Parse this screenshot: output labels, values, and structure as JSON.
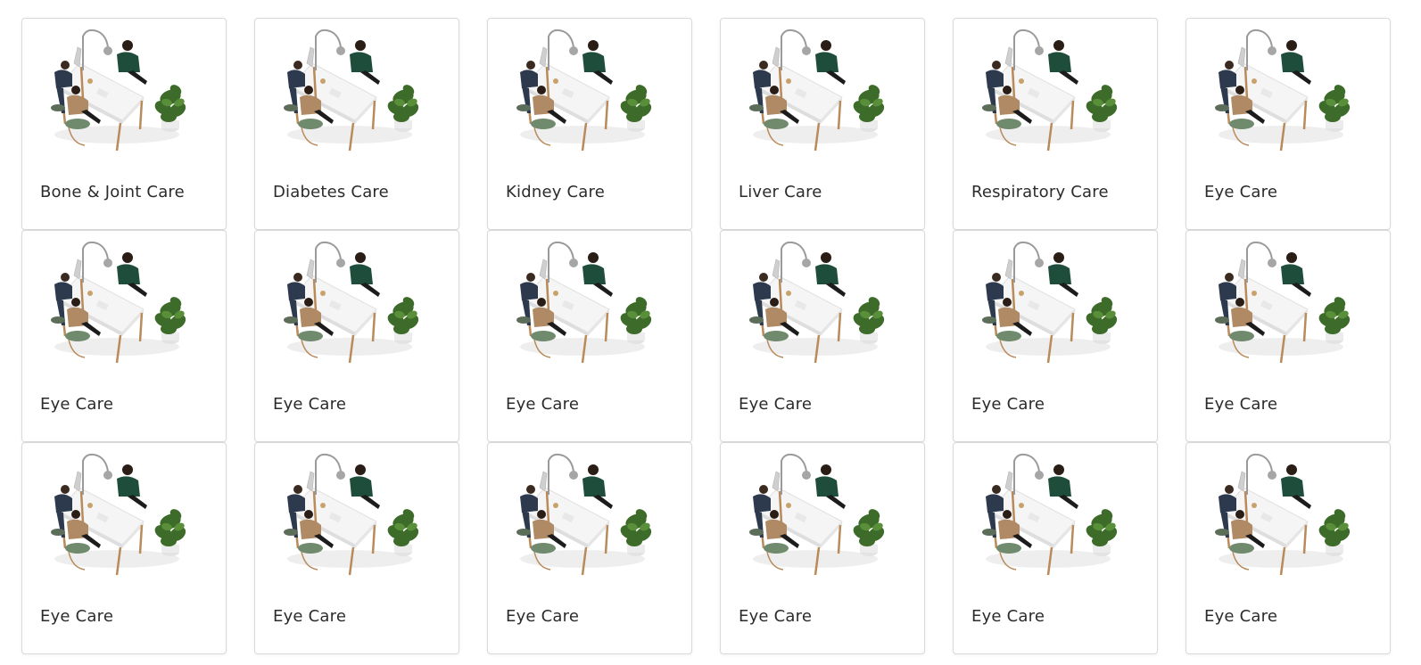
{
  "cards": [
    {
      "label": "Bone & Joint Care"
    },
    {
      "label": "Diabetes Care"
    },
    {
      "label": "Kidney Care"
    },
    {
      "label": "Liver Care"
    },
    {
      "label": "Respiratory Care"
    },
    {
      "label": "Eye Care"
    },
    {
      "label": "Eye Care"
    },
    {
      "label": "Eye Care"
    },
    {
      "label": "Eye Care"
    },
    {
      "label": "Eye Care"
    },
    {
      "label": "Eye Care"
    },
    {
      "label": "Eye Care"
    },
    {
      "label": "Eye Care"
    },
    {
      "label": "Eye Care"
    },
    {
      "label": "Eye Care"
    },
    {
      "label": "Eye Care"
    },
    {
      "label": "Eye Care"
    },
    {
      "label": "Eye Care"
    }
  ],
  "illustration_icon": "doctor-consultation-desk-illustration",
  "colors": {
    "desk": "#f2f2f2",
    "desk_legs": "#b98a5a",
    "plant": "#3d6b2a",
    "patient_shirt": "#b08a64",
    "doctor_shirt": "#1f4d3c",
    "chair": "#6f8a6c"
  }
}
